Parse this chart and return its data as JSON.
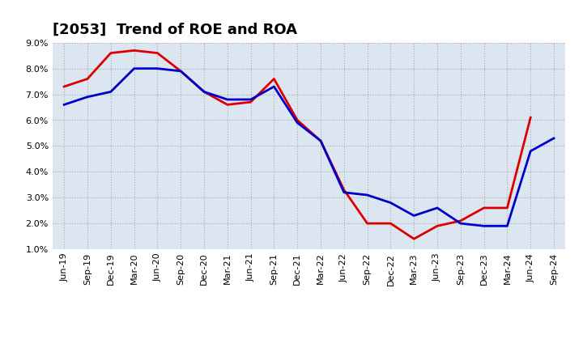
{
  "title": "[2053]  Trend of ROE and ROA",
  "labels": [
    "Jun-19",
    "Sep-19",
    "Dec-19",
    "Mar-20",
    "Jun-20",
    "Sep-20",
    "Dec-20",
    "Mar-21",
    "Jun-21",
    "Sep-21",
    "Dec-21",
    "Mar-22",
    "Jun-22",
    "Sep-22",
    "Dec-22",
    "Mar-23",
    "Jun-23",
    "Sep-23",
    "Dec-23",
    "Mar-24",
    "Jun-24",
    "Sep-24"
  ],
  "roe": [
    7.3,
    7.6,
    8.6,
    8.7,
    8.6,
    7.9,
    7.1,
    6.6,
    6.7,
    7.6,
    6.0,
    5.2,
    3.3,
    2.0,
    2.0,
    1.4,
    1.9,
    2.1,
    2.6,
    2.6,
    6.1,
    null
  ],
  "roa": [
    6.6,
    6.9,
    7.1,
    8.0,
    8.0,
    7.9,
    7.1,
    6.8,
    6.8,
    7.3,
    5.9,
    5.2,
    3.2,
    3.1,
    2.8,
    2.3,
    2.6,
    2.0,
    1.9,
    1.9,
    4.8,
    5.3
  ],
  "roe_color": "#dd0000",
  "roa_color": "#0000cc",
  "fig_bg_color": "#ffffff",
  "plot_bg_color": "#dce6f1",
  "ylim": [
    1.0,
    9.0
  ],
  "yticks": [
    1.0,
    2.0,
    3.0,
    4.0,
    5.0,
    6.0,
    7.0,
    8.0,
    9.0
  ],
  "line_width": 2.0,
  "title_fontsize": 13,
  "tick_fontsize": 8,
  "legend_fontsize": 10
}
